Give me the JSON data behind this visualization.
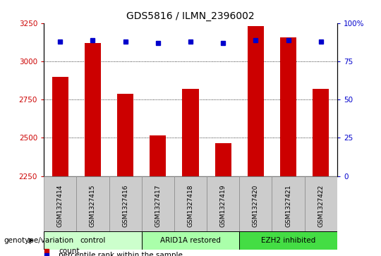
{
  "title": "GDS5816 / ILMN_2396002",
  "samples": [
    "GSM1327414",
    "GSM1327415",
    "GSM1327416",
    "GSM1327417",
    "GSM1327418",
    "GSM1327419",
    "GSM1327420",
    "GSM1327421",
    "GSM1327422"
  ],
  "counts": [
    2900,
    3120,
    2790,
    2515,
    2820,
    2465,
    3230,
    3155,
    2820
  ],
  "percentile_ranks": [
    88,
    89,
    88,
    87,
    88,
    87,
    89,
    89,
    88
  ],
  "ylim_left": [
    2250,
    3250
  ],
  "ylim_right": [
    0,
    100
  ],
  "yticks_left": [
    2250,
    2500,
    2750,
    3000,
    3250
  ],
  "yticks_right": [
    0,
    25,
    50,
    75,
    100
  ],
  "right_tick_labels": [
    "0",
    "25",
    "50",
    "75",
    "100%"
  ],
  "groups": [
    {
      "label": "control",
      "indices": [
        0,
        1,
        2
      ],
      "color": "#ccffcc"
    },
    {
      "label": "ARID1A restored",
      "indices": [
        3,
        4,
        5
      ],
      "color": "#aaffaa"
    },
    {
      "label": "EZH2 inhibited",
      "indices": [
        6,
        7,
        8
      ],
      "color": "#44dd44"
    }
  ],
  "bar_color": "#cc0000",
  "dot_color": "#0000cc",
  "bar_width": 0.5,
  "grid_color": "#000000",
  "left_axis_color": "#cc0000",
  "right_axis_color": "#0000cc",
  "legend_items": [
    {
      "label": "count",
      "color": "#cc0000",
      "marker": "s"
    },
    {
      "label": "percentile rank within the sample",
      "color": "#0000cc",
      "marker": "s"
    }
  ],
  "genotype_label": "genotype/variation",
  "sample_box_color": "#cccccc",
  "group_box_border": "#000000"
}
